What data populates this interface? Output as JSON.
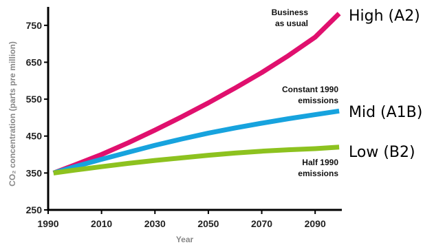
{
  "chart_data": {
    "type": "line",
    "xlabel": "Year",
    "ylabel": "CO₂ concentration (parts pre million)",
    "xlim": [
      1990,
      2100
    ],
    "ylim": [
      250,
      800
    ],
    "x_ticks": [
      1990,
      2010,
      2030,
      2050,
      2070,
      2090
    ],
    "y_ticks": [
      250,
      350,
      450,
      550,
      650,
      750
    ],
    "grid": false,
    "series": [
      {
        "color": "#e0106e",
        "annotation": [
          "Business",
          "as usual"
        ],
        "scenario_label": "High (A2)",
        "x": [
          1992,
          2000,
          2010,
          2020,
          2030,
          2040,
          2050,
          2060,
          2070,
          2080,
          2090,
          2099
        ],
        "y": [
          350,
          372,
          400,
          432,
          466,
          502,
          540,
          580,
          622,
          668,
          718,
          782
        ]
      },
      {
        "color": "#17a3de",
        "annotation": [
          "Constant 1990",
          "emissions"
        ],
        "scenario_label": "Mid (A1B)",
        "x": [
          1992,
          2000,
          2010,
          2020,
          2030,
          2040,
          2050,
          2060,
          2070,
          2080,
          2090,
          2099
        ],
        "y": [
          350,
          367,
          387,
          406,
          425,
          442,
          458,
          472,
          485,
          497,
          508,
          518
        ]
      },
      {
        "color": "#8dc21f",
        "annotation": [
          "Half 1990",
          "emissions"
        ],
        "scenario_label": "Low (B2)",
        "x": [
          1992,
          2000,
          2010,
          2020,
          2030,
          2040,
          2050,
          2060,
          2070,
          2080,
          2090,
          2099
        ],
        "y": [
          350,
          358,
          367,
          376,
          384,
          391,
          398,
          404,
          409,
          413,
          416,
          420
        ]
      }
    ]
  }
}
